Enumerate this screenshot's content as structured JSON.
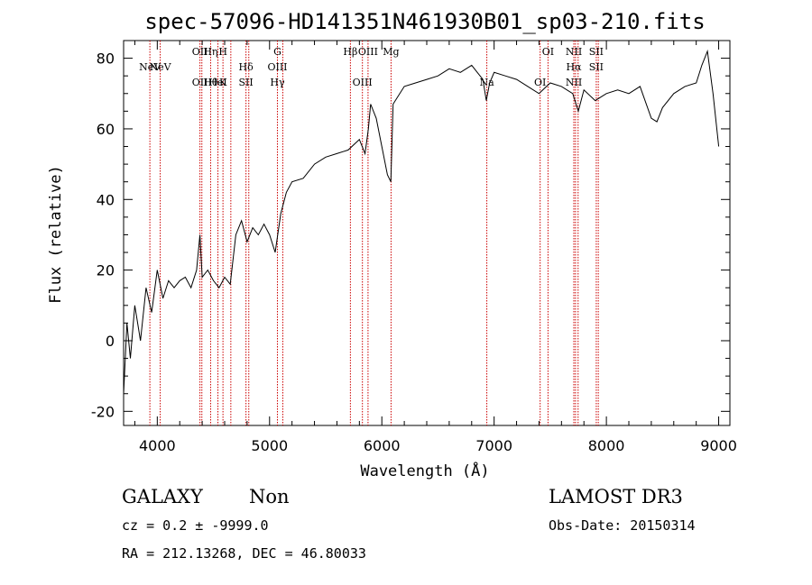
{
  "chart_data": {
    "type": "line",
    "title": "spec-57096-HD141351N461930B01_sp03-210.fits",
    "xlabel": "Wavelength (Å)",
    "ylabel": "Flux (relative)",
    "xlim": [
      3700,
      9100
    ],
    "ylim": [
      -24,
      85
    ],
    "xticks": [
      4000,
      5000,
      6000,
      7000,
      8000,
      9000
    ],
    "yticks": [
      -20,
      0,
      20,
      40,
      60,
      80
    ],
    "grid": false,
    "line_color": "#000000",
    "marker_color": "#cc0000",
    "series": [
      {
        "x": [
          3700,
          3730,
          3760,
          3800,
          3850,
          3900,
          3950,
          4000,
          4050,
          4100,
          4150,
          4200,
          4250,
          4300,
          4350,
          4380,
          4400,
          4450,
          4500,
          4550,
          4600,
          4650,
          4700,
          4750,
          4800,
          4850,
          4900,
          4950,
          5000,
          5050,
          5100,
          5150,
          5200,
          5300,
          5400,
          5500,
          5600,
          5700,
          5800,
          5850,
          5880,
          5900,
          5950,
          6000,
          6050,
          6080,
          6100,
          6200,
          6300,
          6400,
          6500,
          6600,
          6700,
          6800,
          6850,
          6900,
          6930,
          6960,
          7000,
          7100,
          7200,
          7300,
          7400,
          7500,
          7600,
          7700,
          7750,
          7800,
          7900,
          8000,
          8100,
          8200,
          8300,
          8400,
          8450,
          8500,
          8600,
          8700,
          8800,
          8850,
          8900,
          8950,
          9000
        ],
        "y": [
          -15,
          5,
          -5,
          10,
          0,
          15,
          8,
          20,
          12,
          17,
          15,
          17,
          18,
          15,
          20,
          30,
          18,
          20,
          17,
          15,
          18,
          16,
          30,
          34,
          28,
          32,
          30,
          33,
          30,
          25,
          36,
          42,
          45,
          46,
          50,
          52,
          53,
          54,
          57,
          53,
          60,
          67,
          63,
          55,
          47,
          45,
          67,
          72,
          73,
          74,
          75,
          77,
          76,
          78,
          76,
          74,
          68,
          73,
          76,
          75,
          74,
          72,
          70,
          73,
          72,
          70,
          65,
          71,
          68,
          70,
          71,
          70,
          72,
          63,
          62,
          66,
          70,
          72,
          73,
          78,
          82,
          70,
          55
        ]
      }
    ],
    "lines": [
      {
        "wave": 3934,
        "top": "",
        "bottom": "",
        "mid": "NeV"
      },
      {
        "wave": 4026,
        "top": "",
        "bottom": "",
        "mid": "NeV"
      },
      {
        "wave": 4380,
        "top": "OII",
        "bottom": "OII",
        "mid": ""
      },
      {
        "wave": 4397,
        "top": "",
        "bottom": "",
        "mid": ""
      },
      {
        "wave": 4475,
        "top": "Hη",
        "bottom": "Hθ",
        "mid": ""
      },
      {
        "wave": 4540,
        "top": "",
        "bottom": "HeI",
        "mid": ""
      },
      {
        "wave": 4585,
        "top": "H",
        "bottom": "K",
        "mid": ""
      },
      {
        "wave": 4655,
        "top": "",
        "bottom": "",
        "mid": ""
      },
      {
        "wave": 4790,
        "top": "",
        "bottom": "SII",
        "mid": "Hδ"
      },
      {
        "wave": 4815,
        "top": "",
        "bottom": "",
        "mid": ""
      },
      {
        "wave": 5070,
        "top": "G",
        "bottom": "Hγ",
        "mid": "OIII"
      },
      {
        "wave": 5118,
        "top": "",
        "bottom": "",
        "mid": ""
      },
      {
        "wave": 5720,
        "top": "Hβ",
        "bottom": "",
        "mid": ""
      },
      {
        "wave": 5827,
        "top": "",
        "bottom": "OIII",
        "mid": ""
      },
      {
        "wave": 5877,
        "top": "OIII",
        "bottom": "",
        "mid": ""
      },
      {
        "wave": 6082,
        "top": "Mg",
        "bottom": "",
        "mid": ""
      },
      {
        "wave": 6935,
        "top": "",
        "bottom": "Na",
        "mid": ""
      },
      {
        "wave": 7410,
        "top": "",
        "bottom": "OI",
        "mid": ""
      },
      {
        "wave": 7480,
        "top": "OI",
        "bottom": "",
        "mid": ""
      },
      {
        "wave": 7710,
        "top": "NII",
        "bottom": "NII",
        "mid": "Hα"
      },
      {
        "wave": 7725,
        "top": "",
        "bottom": "",
        "mid": ""
      },
      {
        "wave": 7748,
        "top": "",
        "bottom": "",
        "mid": ""
      },
      {
        "wave": 7910,
        "top": "SII",
        "bottom": "",
        "mid": "SII"
      },
      {
        "wave": 7928,
        "top": "",
        "bottom": "",
        "mid": ""
      }
    ]
  },
  "info": {
    "class_label": "GALAXY",
    "subclass_label": "Non",
    "survey": "LAMOST DR3",
    "cz": "cz = 0.2 ± -9999.0",
    "obs_date": "Obs-Date: 20150314",
    "radec": "RA = 212.13268, DEC =  46.80033"
  }
}
